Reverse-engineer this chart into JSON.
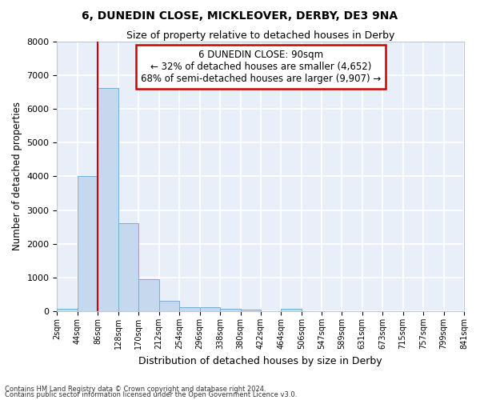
{
  "title_main": "6, DUNEDIN CLOSE, MICKLEOVER, DERBY, DE3 9NA",
  "title_sub": "Size of property relative to detached houses in Derby",
  "xlabel": "Distribution of detached houses by size in Derby",
  "ylabel": "Number of detached properties",
  "bar_color": "#c5d8ee",
  "bar_edge_color": "#7aadd4",
  "bg_color": "#e8eff8",
  "grid_color": "#ffffff",
  "vline_x": 86,
  "vline_color": "#cc0000",
  "annotation_line1": "6 DUNEDIN CLOSE: 90sqm",
  "annotation_line2": "← 32% of detached houses are smaller (4,652)",
  "annotation_line3": "68% of semi-detached houses are larger (9,907) →",
  "annotation_box_color": "#cc0000",
  "annotation_box_bg": "white",
  "footnote1": "Contains HM Land Registry data © Crown copyright and database right 2024.",
  "footnote2": "Contains public sector information licensed under the Open Government Licence v3.0.",
  "bin_starts": [
    2,
    44,
    86,
    128,
    170,
    212,
    254,
    296,
    338,
    380,
    422,
    464,
    506,
    547,
    589,
    631,
    673,
    715,
    757,
    799
  ],
  "bin_width": 42,
  "bin_labels": [
    "2sqm",
    "44sqm",
    "86sqm",
    "128sqm",
    "170sqm",
    "212sqm",
    "254sqm",
    "296sqm",
    "338sqm",
    "380sqm",
    "422sqm",
    "464sqm",
    "506sqm",
    "547sqm",
    "589sqm",
    "631sqm",
    "673sqm",
    "715sqm",
    "757sqm",
    "799sqm",
    "841sqm"
  ],
  "bar_heights": [
    80,
    4000,
    6620,
    2620,
    950,
    320,
    130,
    110,
    80,
    50,
    0,
    60,
    0,
    0,
    0,
    0,
    0,
    0,
    0,
    0
  ],
  "ylim": [
    0,
    8000
  ],
  "yticks": [
    0,
    1000,
    2000,
    3000,
    4000,
    5000,
    6000,
    7000,
    8000
  ],
  "xlim": [
    2,
    841
  ]
}
